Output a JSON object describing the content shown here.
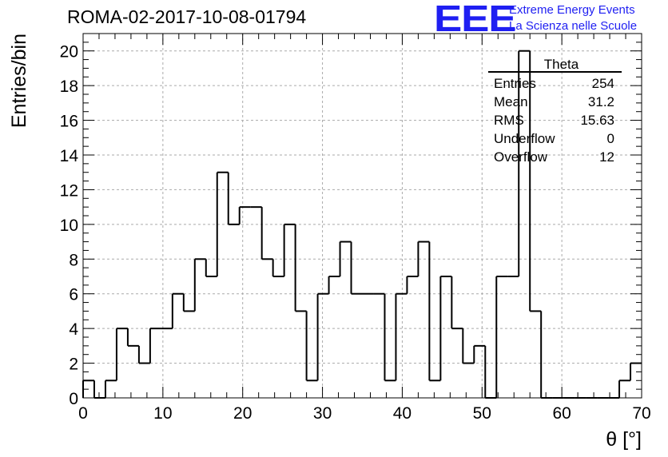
{
  "header": {
    "title": "ROMA-02-2017-10-08-01794",
    "logo_text": "EEE",
    "logo_line1": "Extreme Energy Events",
    "logo_line2": "La Scienza nelle Scuole",
    "logo_color": "#1f1ff2"
  },
  "chart_data": {
    "type": "histogram",
    "title": "ROMA-02-2017-10-08-01794",
    "xlabel": "θ [°]",
    "ylabel": "Entries/bin",
    "xlim": [
      0,
      70
    ],
    "ylim": [
      0,
      21
    ],
    "x_ticks": [
      0,
      10,
      20,
      30,
      40,
      50,
      60,
      70
    ],
    "y_ticks": [
      0,
      2,
      4,
      6,
      8,
      10,
      12,
      14,
      16,
      18,
      20
    ],
    "grid": true,
    "bin_width": 1.4,
    "bin_edges_start": 0,
    "values": [
      1,
      0,
      1,
      4,
      3,
      2,
      4,
      4,
      6,
      5,
      8,
      7,
      13,
      10,
      11,
      11,
      8,
      7,
      10,
      5,
      1,
      6,
      7,
      9,
      6,
      6,
      6,
      1,
      6,
      7,
      9,
      1,
      7,
      4,
      2,
      3,
      0,
      7,
      7,
      20,
      5,
      0,
      0,
      0,
      0,
      0,
      0,
      0,
      1,
      2
    ],
    "stats": {
      "name": "Theta",
      "rows": [
        {
          "label": "Entries",
          "value": "254"
        },
        {
          "label": "Mean",
          "value": "31.2"
        },
        {
          "label": "RMS",
          "value": "15.63"
        },
        {
          "label": "Underflow",
          "value": "0"
        },
        {
          "label": "Overflow",
          "value": "12"
        }
      ]
    }
  }
}
